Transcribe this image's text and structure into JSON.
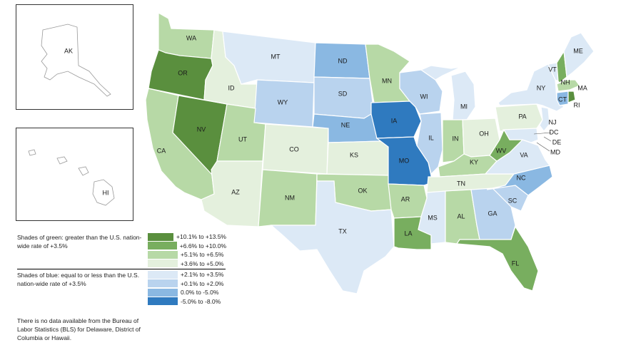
{
  "colors": {
    "green_1": "#5a8f3e",
    "green_2": "#78ae5f",
    "green_3": "#b7d9a6",
    "green_4": "#e4f0dd",
    "blue_1": "#dce9f6",
    "blue_2": "#b9d3ee",
    "blue_3": "#8ab8e2",
    "blue_4": "#2f7abf"
  },
  "legend": {
    "green_caption": "Shades of green: greater than the U.S. nation-wide rate of +3.5%",
    "blue_caption": "Shades of blue: equal to or less than the U.S. nation-wide rate of +3.5%",
    "green_items": [
      {
        "label": "+10.1% to +13.5%",
        "color": "#5a8f3e"
      },
      {
        "label": "+6.6% to +10.0%",
        "color": "#78ae5f"
      },
      {
        "label": "+5.1% to +6.5%",
        "color": "#b7d9a6"
      },
      {
        "label": "+3.6% to +5.0%",
        "color": "#e4f0dd"
      }
    ],
    "blue_items": [
      {
        "label": "+2.1% to +3.5%",
        "color": "#dce9f6"
      },
      {
        "label": "+0.1% to +2.0%",
        "color": "#b9d3ee"
      },
      {
        "label": "0.0% to -5.0%",
        "color": "#8ab8e2"
      },
      {
        "label": "-5.0% to -8.0%",
        "color": "#2f7abf"
      }
    ]
  },
  "note": "There is no data available from the Bureau of Labor Statistics (BLS) for Delaware, District of Columbia or Hawaii.",
  "states": [
    {
      "abbr": "WA",
      "class": "+5.1% to +6.5%"
    },
    {
      "abbr": "OR",
      "class": "+10.1% to +13.5%"
    },
    {
      "abbr": "CA",
      "class": "+5.1% to +6.5%"
    },
    {
      "abbr": "NV",
      "class": "+10.1% to +13.5%"
    },
    {
      "abbr": "ID",
      "class": "+3.6% to +5.0%"
    },
    {
      "abbr": "MT",
      "class": "+2.1% to +3.5%"
    },
    {
      "abbr": "WY",
      "class": "+0.1% to +2.0%"
    },
    {
      "abbr": "UT",
      "class": "+5.1% to +6.5%"
    },
    {
      "abbr": "AZ",
      "class": "+3.6% to +5.0%"
    },
    {
      "abbr": "CO",
      "class": "+3.6% to +5.0%"
    },
    {
      "abbr": "NM",
      "class": "+5.1% to +6.5%"
    },
    {
      "abbr": "ND",
      "class": "0.0% to -5.0%"
    },
    {
      "abbr": "SD",
      "class": "+0.1% to +2.0%"
    },
    {
      "abbr": "NE",
      "class": "0.0% to -5.0%"
    },
    {
      "abbr": "KS",
      "class": "+3.6% to +5.0%"
    },
    {
      "abbr": "OK",
      "class": "+5.1% to +6.5%"
    },
    {
      "abbr": "TX",
      "class": "+2.1% to +3.5%"
    },
    {
      "abbr": "MN",
      "class": "+5.1% to +6.5%"
    },
    {
      "abbr": "IA",
      "class": "-5.0% to -8.0%"
    },
    {
      "abbr": "MO",
      "class": "-5.0% to -8.0%"
    },
    {
      "abbr": "AR",
      "class": "+5.1% to +6.5%"
    },
    {
      "abbr": "LA",
      "class": "+6.6% to +10.0%"
    },
    {
      "abbr": "WI",
      "class": "+0.1% to +2.0%"
    },
    {
      "abbr": "IL",
      "class": "+0.1% to +2.0%"
    },
    {
      "abbr": "MI",
      "class": "+2.1% to +3.5%"
    },
    {
      "abbr": "IN",
      "class": "+5.1% to +6.5%"
    },
    {
      "abbr": "OH",
      "class": "+3.6% to +5.0%"
    },
    {
      "abbr": "KY",
      "class": "+5.1% to +6.5%"
    },
    {
      "abbr": "TN",
      "class": "+3.6% to +5.0%"
    },
    {
      "abbr": "MS",
      "class": "+2.1% to +3.5%"
    },
    {
      "abbr": "AL",
      "class": "+5.1% to +6.5%"
    },
    {
      "abbr": "GA",
      "class": "+0.1% to +2.0%"
    },
    {
      "abbr": "FL",
      "class": "+6.6% to +10.0%"
    },
    {
      "abbr": "SC",
      "class": "+0.1% to +2.0%"
    },
    {
      "abbr": "NC",
      "class": "0.0% to -5.0%"
    },
    {
      "abbr": "VA",
      "class": "+2.1% to +3.5%"
    },
    {
      "abbr": "WV",
      "class": "+6.6% to +10.0%"
    },
    {
      "abbr": "PA",
      "class": "+3.6% to +5.0%"
    },
    {
      "abbr": "NY",
      "class": "+2.1% to +3.5%"
    },
    {
      "abbr": "VT",
      "class": "+2.1% to +3.5%"
    },
    {
      "abbr": "NH",
      "class": "+6.6% to +10.0%"
    },
    {
      "abbr": "ME",
      "class": "+2.1% to +3.5%"
    },
    {
      "abbr": "MA",
      "class": "+5.1% to +6.5%"
    },
    {
      "abbr": "CT",
      "class": "0.0% to -5.0%"
    },
    {
      "abbr": "RI",
      "class": "+10.1% to +13.5%"
    },
    {
      "abbr": "NJ",
      "class": "+2.1% to +3.5%"
    },
    {
      "abbr": "MD",
      "class": "+2.1% to +3.5%"
    },
    {
      "abbr": "DE",
      "class": ""
    },
    {
      "abbr": "DC",
      "class": ""
    },
    {
      "abbr": "AK",
      "class": ""
    },
    {
      "abbr": "HI",
      "class": ""
    }
  ]
}
